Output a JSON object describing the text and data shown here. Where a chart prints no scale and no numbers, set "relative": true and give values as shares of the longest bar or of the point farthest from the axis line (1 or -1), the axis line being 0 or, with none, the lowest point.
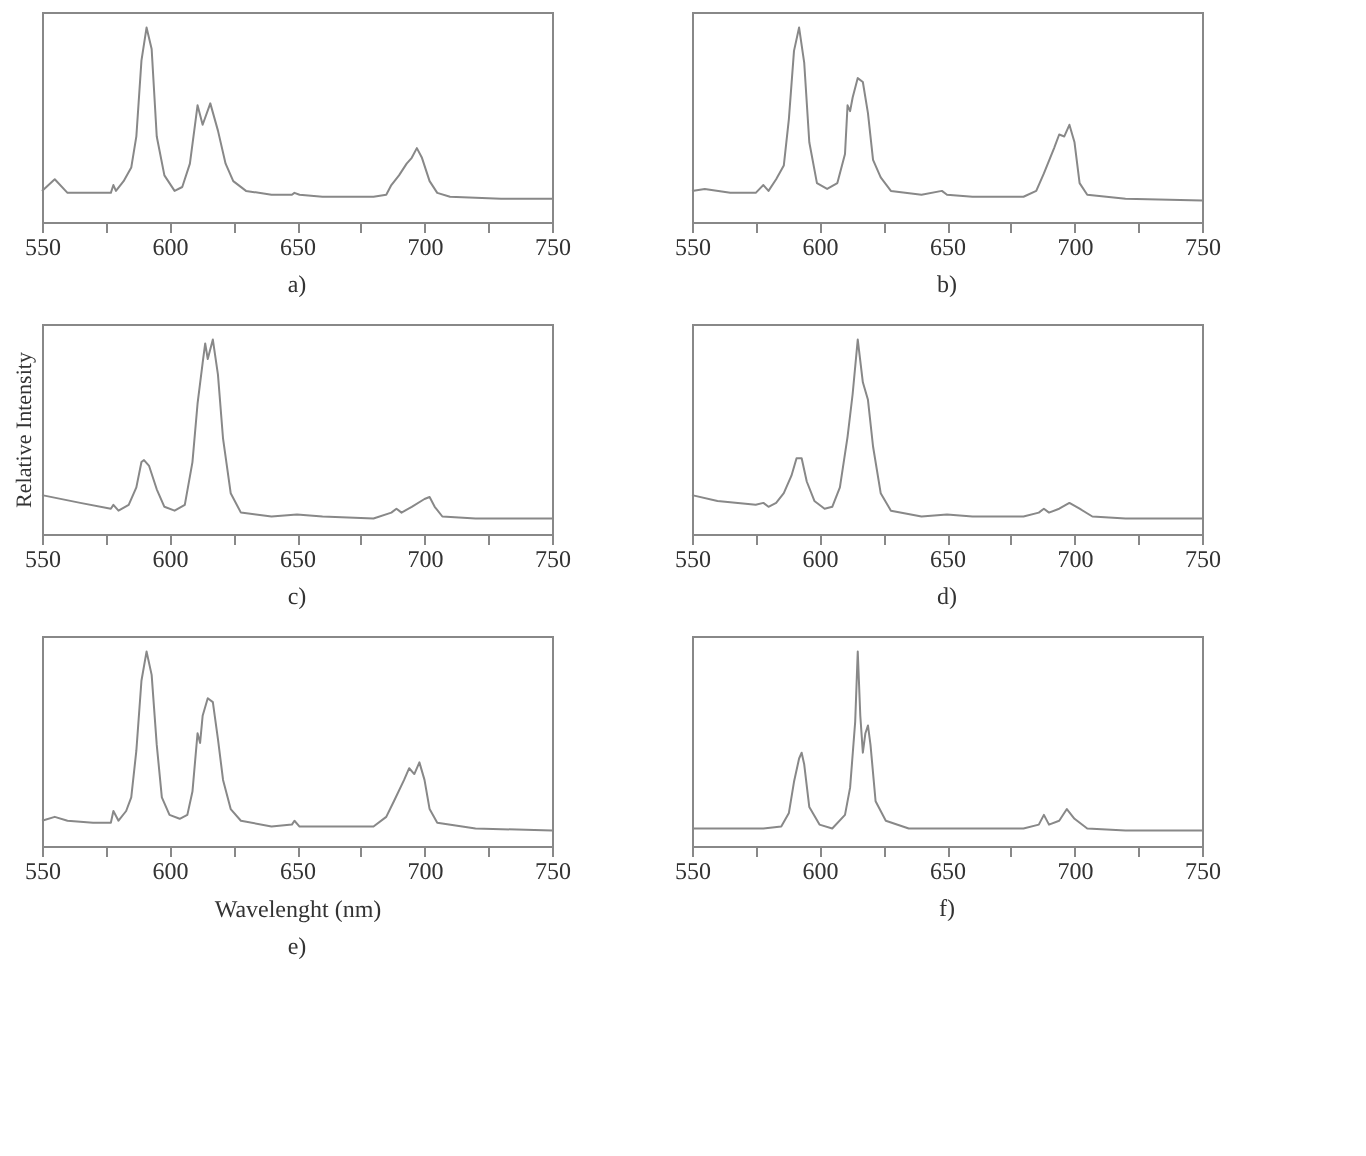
{
  "chart_data": [
    {
      "type": "line",
      "title": "a)",
      "relative": true,
      "color": "#888888",
      "xlim": [
        550,
        750
      ],
      "xticks": [
        550,
        {
          "value": 575,
          "label": null
        },
        600,
        {
          "value": 625,
          "label": null
        },
        650,
        {
          "value": 675,
          "label": null
        },
        700,
        {
          "value": 725,
          "label": null
        },
        750
      ],
      "x": [
        550,
        555,
        560,
        570,
        577,
        578,
        579,
        582,
        585,
        587,
        589,
        591,
        593,
        595,
        598,
        602,
        605,
        608,
        610,
        611,
        613,
        616,
        619,
        622,
        625,
        630,
        640,
        648,
        649,
        651,
        660,
        680,
        685,
        687,
        690,
        693,
        695,
        697,
        699,
        702,
        705,
        710,
        730,
        750
      ],
      "values": [
        0.16,
        0.22,
        0.15,
        0.15,
        0.15,
        0.19,
        0.16,
        0.21,
        0.28,
        0.44,
        0.83,
        1,
        0.89,
        0.44,
        0.24,
        0.16,
        0.18,
        0.3,
        0.5,
        0.6,
        0.5,
        0.61,
        0.47,
        0.3,
        0.21,
        0.16,
        0.14,
        0.14,
        0.15,
        0.14,
        0.13,
        0.13,
        0.14,
        0.19,
        0.24,
        0.3,
        0.33,
        0.38,
        0.33,
        0.21,
        0.15,
        0.13,
        0.12,
        0.12
      ]
    },
    {
      "type": "line",
      "title": "b)",
      "relative": true,
      "color": "#888888",
      "xlim": [
        550,
        750
      ],
      "xticks": [
        550,
        {
          "value": 575,
          "label": null
        },
        600,
        {
          "value": 625,
          "label": null
        },
        650,
        {
          "value": 675,
          "label": null
        },
        700,
        {
          "value": 725,
          "label": null
        },
        750
      ],
      "x": [
        550,
        555,
        565,
        575,
        578,
        580,
        583,
        586,
        588,
        590,
        592,
        594,
        596,
        599,
        603,
        607,
        610,
        611,
        612,
        613,
        615,
        617,
        619,
        621,
        624,
        628,
        640,
        648,
        650,
        660,
        680,
        685,
        688,
        692,
        694,
        696,
        698,
        700,
        702,
        705,
        720,
        750
      ],
      "values": [
        0.16,
        0.17,
        0.15,
        0.15,
        0.19,
        0.16,
        0.22,
        0.29,
        0.53,
        0.88,
        1,
        0.82,
        0.41,
        0.2,
        0.17,
        0.2,
        0.35,
        0.6,
        0.57,
        0.64,
        0.74,
        0.72,
        0.56,
        0.32,
        0.23,
        0.16,
        0.14,
        0.16,
        0.14,
        0.13,
        0.13,
        0.16,
        0.25,
        0.38,
        0.45,
        0.44,
        0.5,
        0.41,
        0.2,
        0.14,
        0.12,
        0.11
      ]
    },
    {
      "type": "line",
      "title": "c)",
      "ylabel": "Relative Intensity",
      "relative": true,
      "color": "#888888",
      "xlim": [
        550,
        750
      ],
      "xticks": [
        550,
        {
          "value": 575,
          "label": null
        },
        600,
        {
          "value": 625,
          "label": null
        },
        650,
        {
          "value": 675,
          "label": null
        },
        700,
        {
          "value": 725,
          "label": null
        },
        750
      ],
      "x": [
        550,
        565,
        577,
        578,
        580,
        584,
        587,
        589,
        590,
        592,
        595,
        598,
        602,
        606,
        609,
        611,
        613,
        614,
        615,
        617,
        619,
        621,
        624,
        628,
        640,
        650,
        660,
        680,
        687,
        689,
        691,
        695,
        700,
        702,
        704,
        707,
        720,
        750
      ],
      "values": [
        0.2,
        0.16,
        0.13,
        0.15,
        0.12,
        0.15,
        0.24,
        0.37,
        0.38,
        0.35,
        0.23,
        0.14,
        0.12,
        0.15,
        0.37,
        0.67,
        0.88,
        0.98,
        0.9,
        1,
        0.82,
        0.49,
        0.21,
        0.11,
        0.09,
        0.1,
        0.09,
        0.08,
        0.11,
        0.13,
        0.11,
        0.14,
        0.18,
        0.19,
        0.14,
        0.09,
        0.08,
        0.08
      ]
    },
    {
      "type": "line",
      "title": "d)",
      "relative": true,
      "color": "#888888",
      "xlim": [
        550,
        750
      ],
      "xticks": [
        550,
        {
          "value": 575,
          "label": null
        },
        600,
        {
          "value": 625,
          "label": null
        },
        650,
        {
          "value": 675,
          "label": null
        },
        700,
        {
          "value": 725,
          "label": null
        },
        750
      ],
      "x": [
        550,
        560,
        575,
        578,
        580,
        583,
        586,
        589,
        591,
        593,
        595,
        598,
        602,
        605,
        608,
        611,
        613,
        615,
        617,
        619,
        621,
        624,
        628,
        640,
        650,
        660,
        680,
        686,
        688,
        690,
        694,
        698,
        702,
        707,
        720,
        750
      ],
      "values": [
        0.2,
        0.17,
        0.15,
        0.16,
        0.14,
        0.16,
        0.21,
        0.3,
        0.39,
        0.39,
        0.27,
        0.17,
        0.13,
        0.14,
        0.24,
        0.5,
        0.72,
        1,
        0.78,
        0.69,
        0.45,
        0.21,
        0.12,
        0.09,
        0.1,
        0.09,
        0.09,
        0.11,
        0.13,
        0.11,
        0.13,
        0.16,
        0.13,
        0.09,
        0.08,
        0.08
      ]
    },
    {
      "type": "line",
      "title": "e)",
      "xlabel": "Wavelenght (nm)",
      "relative": true,
      "color": "#888888",
      "xlim": [
        550,
        750
      ],
      "xticks": [
        550,
        {
          "value": 575,
          "label": null
        },
        600,
        {
          "value": 625,
          "label": null
        },
        650,
        {
          "value": 675,
          "label": null
        },
        700,
        {
          "value": 725,
          "label": null
        },
        750
      ],
      "x": [
        550,
        555,
        560,
        570,
        577,
        578,
        580,
        583,
        585,
        587,
        589,
        591,
        593,
        595,
        597,
        600,
        604,
        607,
        609,
        611,
        612,
        613,
        615,
        617,
        619,
        621,
        624,
        628,
        640,
        648,
        649,
        651,
        660,
        680,
        685,
        688,
        692,
        694,
        696,
        698,
        700,
        702,
        705,
        720,
        750
      ],
      "values": [
        0.13,
        0.15,
        0.13,
        0.12,
        0.12,
        0.18,
        0.13,
        0.18,
        0.25,
        0.49,
        0.85,
        1,
        0.88,
        0.52,
        0.25,
        0.16,
        0.14,
        0.16,
        0.28,
        0.58,
        0.53,
        0.67,
        0.76,
        0.74,
        0.55,
        0.34,
        0.19,
        0.13,
        0.1,
        0.11,
        0.13,
        0.1,
        0.1,
        0.1,
        0.15,
        0.23,
        0.34,
        0.4,
        0.37,
        0.43,
        0.34,
        0.19,
        0.12,
        0.09,
        0.08
      ]
    },
    {
      "type": "line",
      "title": "f)",
      "relative": true,
      "color": "#888888",
      "xlim": [
        550,
        750
      ],
      "xticks": [
        550,
        {
          "value": 575,
          "label": null
        },
        600,
        {
          "value": 625,
          "label": null
        },
        650,
        {
          "value": 675,
          "label": null
        },
        700,
        {
          "value": 725,
          "label": null
        },
        750
      ],
      "x": [
        550,
        570,
        578,
        585,
        588,
        590,
        592,
        593,
        594,
        596,
        600,
        605,
        610,
        612,
        614,
        615,
        616,
        617,
        618,
        619,
        620,
        622,
        626,
        635,
        660,
        680,
        686,
        688,
        690,
        694,
        697,
        700,
        705,
        720,
        750
      ],
      "values": [
        0.09,
        0.09,
        0.09,
        0.1,
        0.17,
        0.33,
        0.45,
        0.48,
        0.42,
        0.2,
        0.11,
        0.09,
        0.16,
        0.3,
        0.64,
        1,
        0.67,
        0.48,
        0.58,
        0.62,
        0.52,
        0.23,
        0.13,
        0.09,
        0.09,
        0.09,
        0.11,
        0.16,
        0.11,
        0.13,
        0.19,
        0.14,
        0.09,
        0.08,
        0.08
      ]
    }
  ]
}
